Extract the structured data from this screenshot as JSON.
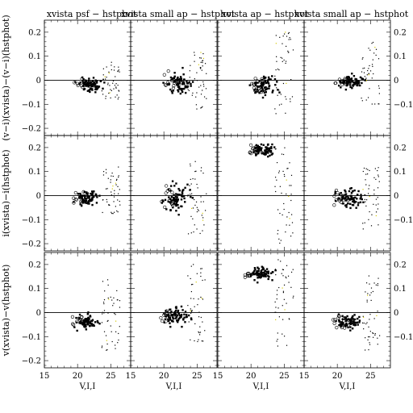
{
  "chart_data": {
    "type": "scatter",
    "layout": "3x4 grid of panels, shared axes",
    "xlabel": "V,I,I",
    "x_ticks": [
      "15",
      "20",
      "25"
    ],
    "xlim": [
      15,
      28
    ],
    "ylim": [
      -0.23,
      0.25
    ],
    "y_ticks": [
      "−0.2",
      "−0.1",
      "0",
      "0.1",
      "0.2"
    ],
    "y_ticks_right": [
      "−0.1",
      "0",
      "0.1",
      "0.2"
    ],
    "column_titles": [
      "xvista psf − hstphot",
      "xvista small ap − hstphot",
      "xvista ap − hstphot",
      "xvista small ap − hstphot"
    ],
    "row_ylabels": [
      "(v−i)(xvista)−(v−i)(hstphot)",
      "i(xvista)−i(hstphot)",
      "v(xvista)−v(hstphot)"
    ],
    "zero_line": 0,
    "panels": [
      {
        "row": 0,
        "col": 0,
        "center": [
          22.0,
          -0.02
        ],
        "spread": [
          1.6,
          0.02
        ],
        "faint_tail": [
          -0.08,
          0.08
        ]
      },
      {
        "row": 0,
        "col": 1,
        "center": [
          22.5,
          -0.01
        ],
        "spread": [
          1.6,
          0.03
        ],
        "faint_tail": [
          -0.12,
          0.14
        ]
      },
      {
        "row": 0,
        "col": 2,
        "center": [
          22.0,
          -0.02
        ],
        "spread": [
          1.6,
          0.03
        ],
        "faint_tail": [
          -0.14,
          0.2
        ]
      },
      {
        "row": 0,
        "col": 3,
        "center": [
          22.0,
          -0.01
        ],
        "spread": [
          1.6,
          0.02
        ],
        "faint_tail": [
          -0.1,
          0.16
        ]
      },
      {
        "row": 1,
        "col": 0,
        "center": [
          21.5,
          -0.01
        ],
        "spread": [
          1.6,
          0.02
        ],
        "faint_tail": [
          -0.08,
          0.12
        ]
      },
      {
        "row": 1,
        "col": 1,
        "center": [
          22.0,
          -0.01
        ],
        "spread": [
          1.6,
          0.04
        ],
        "faint_tail": [
          -0.16,
          0.16
        ]
      },
      {
        "row": 1,
        "col": 2,
        "center": [
          21.8,
          0.19
        ],
        "spread": [
          1.6,
          0.02
        ],
        "faint_tail": [
          -0.2,
          0.2
        ]
      },
      {
        "row": 1,
        "col": 3,
        "center": [
          22.0,
          -0.01
        ],
        "spread": [
          1.6,
          0.03
        ],
        "faint_tail": [
          -0.14,
          0.12
        ]
      },
      {
        "row": 2,
        "col": 0,
        "center": [
          21.5,
          -0.04
        ],
        "spread": [
          1.6,
          0.02
        ],
        "faint_tail": [
          -0.18,
          0.14
        ]
      },
      {
        "row": 2,
        "col": 1,
        "center": [
          22.0,
          -0.01
        ],
        "spread": [
          1.6,
          0.03
        ],
        "faint_tail": [
          -0.14,
          0.2
        ]
      },
      {
        "row": 2,
        "col": 2,
        "center": [
          21.5,
          0.16
        ],
        "spread": [
          1.6,
          0.02
        ],
        "faint_tail": [
          -0.16,
          0.22
        ]
      },
      {
        "row": 2,
        "col": 3,
        "center": [
          21.8,
          -0.04
        ],
        "spread": [
          1.6,
          0.02
        ],
        "faint_tail": [
          -0.16,
          0.16
        ]
      }
    ]
  }
}
